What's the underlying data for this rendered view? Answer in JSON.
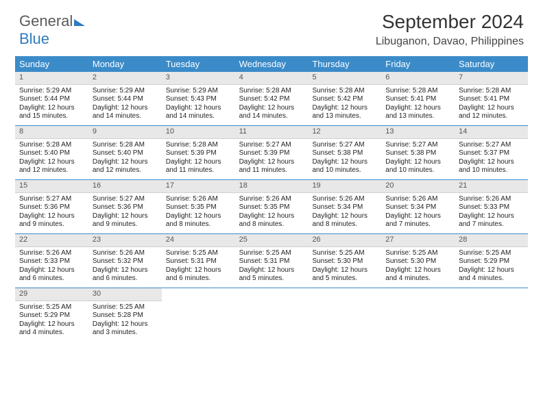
{
  "logo": {
    "text1": "General",
    "text2": "Blue"
  },
  "header": {
    "month": "September 2024",
    "location": "Libuganon, Davao, Philippines"
  },
  "colors": {
    "accent": "#3b8bc9",
    "header_text": "#ffffff",
    "daynum_bg": "#e8e8e8"
  },
  "daynames": [
    "Sunday",
    "Monday",
    "Tuesday",
    "Wednesday",
    "Thursday",
    "Friday",
    "Saturday"
  ],
  "weeks": [
    [
      {
        "n": "1",
        "sr": "Sunrise: 5:29 AM",
        "ss": "Sunset: 5:44 PM",
        "d1": "Daylight: 12 hours",
        "d2": "and 15 minutes."
      },
      {
        "n": "2",
        "sr": "Sunrise: 5:29 AM",
        "ss": "Sunset: 5:44 PM",
        "d1": "Daylight: 12 hours",
        "d2": "and 14 minutes."
      },
      {
        "n": "3",
        "sr": "Sunrise: 5:29 AM",
        "ss": "Sunset: 5:43 PM",
        "d1": "Daylight: 12 hours",
        "d2": "and 14 minutes."
      },
      {
        "n": "4",
        "sr": "Sunrise: 5:28 AM",
        "ss": "Sunset: 5:42 PM",
        "d1": "Daylight: 12 hours",
        "d2": "and 14 minutes."
      },
      {
        "n": "5",
        "sr": "Sunrise: 5:28 AM",
        "ss": "Sunset: 5:42 PM",
        "d1": "Daylight: 12 hours",
        "d2": "and 13 minutes."
      },
      {
        "n": "6",
        "sr": "Sunrise: 5:28 AM",
        "ss": "Sunset: 5:41 PM",
        "d1": "Daylight: 12 hours",
        "d2": "and 13 minutes."
      },
      {
        "n": "7",
        "sr": "Sunrise: 5:28 AM",
        "ss": "Sunset: 5:41 PM",
        "d1": "Daylight: 12 hours",
        "d2": "and 12 minutes."
      }
    ],
    [
      {
        "n": "8",
        "sr": "Sunrise: 5:28 AM",
        "ss": "Sunset: 5:40 PM",
        "d1": "Daylight: 12 hours",
        "d2": "and 12 minutes."
      },
      {
        "n": "9",
        "sr": "Sunrise: 5:28 AM",
        "ss": "Sunset: 5:40 PM",
        "d1": "Daylight: 12 hours",
        "d2": "and 12 minutes."
      },
      {
        "n": "10",
        "sr": "Sunrise: 5:28 AM",
        "ss": "Sunset: 5:39 PM",
        "d1": "Daylight: 12 hours",
        "d2": "and 11 minutes."
      },
      {
        "n": "11",
        "sr": "Sunrise: 5:27 AM",
        "ss": "Sunset: 5:39 PM",
        "d1": "Daylight: 12 hours",
        "d2": "and 11 minutes."
      },
      {
        "n": "12",
        "sr": "Sunrise: 5:27 AM",
        "ss": "Sunset: 5:38 PM",
        "d1": "Daylight: 12 hours",
        "d2": "and 10 minutes."
      },
      {
        "n": "13",
        "sr": "Sunrise: 5:27 AM",
        "ss": "Sunset: 5:38 PM",
        "d1": "Daylight: 12 hours",
        "d2": "and 10 minutes."
      },
      {
        "n": "14",
        "sr": "Sunrise: 5:27 AM",
        "ss": "Sunset: 5:37 PM",
        "d1": "Daylight: 12 hours",
        "d2": "and 10 minutes."
      }
    ],
    [
      {
        "n": "15",
        "sr": "Sunrise: 5:27 AM",
        "ss": "Sunset: 5:36 PM",
        "d1": "Daylight: 12 hours",
        "d2": "and 9 minutes."
      },
      {
        "n": "16",
        "sr": "Sunrise: 5:27 AM",
        "ss": "Sunset: 5:36 PM",
        "d1": "Daylight: 12 hours",
        "d2": "and 9 minutes."
      },
      {
        "n": "17",
        "sr": "Sunrise: 5:26 AM",
        "ss": "Sunset: 5:35 PM",
        "d1": "Daylight: 12 hours",
        "d2": "and 8 minutes."
      },
      {
        "n": "18",
        "sr": "Sunrise: 5:26 AM",
        "ss": "Sunset: 5:35 PM",
        "d1": "Daylight: 12 hours",
        "d2": "and 8 minutes."
      },
      {
        "n": "19",
        "sr": "Sunrise: 5:26 AM",
        "ss": "Sunset: 5:34 PM",
        "d1": "Daylight: 12 hours",
        "d2": "and 8 minutes."
      },
      {
        "n": "20",
        "sr": "Sunrise: 5:26 AM",
        "ss": "Sunset: 5:34 PM",
        "d1": "Daylight: 12 hours",
        "d2": "and 7 minutes."
      },
      {
        "n": "21",
        "sr": "Sunrise: 5:26 AM",
        "ss": "Sunset: 5:33 PM",
        "d1": "Daylight: 12 hours",
        "d2": "and 7 minutes."
      }
    ],
    [
      {
        "n": "22",
        "sr": "Sunrise: 5:26 AM",
        "ss": "Sunset: 5:33 PM",
        "d1": "Daylight: 12 hours",
        "d2": "and 6 minutes."
      },
      {
        "n": "23",
        "sr": "Sunrise: 5:26 AM",
        "ss": "Sunset: 5:32 PM",
        "d1": "Daylight: 12 hours",
        "d2": "and 6 minutes."
      },
      {
        "n": "24",
        "sr": "Sunrise: 5:25 AM",
        "ss": "Sunset: 5:31 PM",
        "d1": "Daylight: 12 hours",
        "d2": "and 6 minutes."
      },
      {
        "n": "25",
        "sr": "Sunrise: 5:25 AM",
        "ss": "Sunset: 5:31 PM",
        "d1": "Daylight: 12 hours",
        "d2": "and 5 minutes."
      },
      {
        "n": "26",
        "sr": "Sunrise: 5:25 AM",
        "ss": "Sunset: 5:30 PM",
        "d1": "Daylight: 12 hours",
        "d2": "and 5 minutes."
      },
      {
        "n": "27",
        "sr": "Sunrise: 5:25 AM",
        "ss": "Sunset: 5:30 PM",
        "d1": "Daylight: 12 hours",
        "d2": "and 4 minutes."
      },
      {
        "n": "28",
        "sr": "Sunrise: 5:25 AM",
        "ss": "Sunset: 5:29 PM",
        "d1": "Daylight: 12 hours",
        "d2": "and 4 minutes."
      }
    ],
    [
      {
        "n": "29",
        "sr": "Sunrise: 5:25 AM",
        "ss": "Sunset: 5:29 PM",
        "d1": "Daylight: 12 hours",
        "d2": "and 4 minutes."
      },
      {
        "n": "30",
        "sr": "Sunrise: 5:25 AM",
        "ss": "Sunset: 5:28 PM",
        "d1": "Daylight: 12 hours",
        "d2": "and 3 minutes."
      },
      {
        "empty": true
      },
      {
        "empty": true
      },
      {
        "empty": true
      },
      {
        "empty": true
      },
      {
        "empty": true
      }
    ]
  ]
}
